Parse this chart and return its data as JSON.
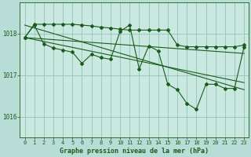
{
  "title": "Graphe pression niveau de la mer (hPa)",
  "bg_color": "#b8ddd6",
  "plot_bg_color": "#c8e8e0",
  "grid_color": "#88bbb4",
  "line_color": "#1a5c1a",
  "tick_color": "#1a5c1a",
  "x_ticks": [
    0,
    1,
    2,
    3,
    4,
    5,
    6,
    7,
    8,
    9,
    10,
    11,
    12,
    13,
    14,
    15,
    16,
    17,
    18,
    19,
    20,
    21,
    22,
    23
  ],
  "ylim": [
    1015.5,
    1018.75
  ],
  "yticks": [
    1016,
    1017,
    1018
  ],
  "series_main": [
    1017.9,
    1018.2,
    1017.75,
    1017.65,
    1017.6,
    1017.55,
    1017.28,
    1017.5,
    1017.42,
    1017.38,
    1018.05,
    1018.2,
    1017.15,
    1017.7,
    1017.58,
    1016.78,
    1016.65,
    1016.32,
    1016.18,
    1016.78,
    1016.78,
    1016.68,
    1016.68,
    1017.68
  ],
  "series_flat": [
    1017.9,
    1018.22,
    1018.22,
    1018.22,
    1018.22,
    1018.22,
    1018.2,
    1018.18,
    1018.15,
    1018.13,
    1018.1,
    1018.08,
    1018.08,
    1018.08,
    1018.08,
    1018.08,
    1017.72,
    1017.68,
    1017.68,
    1017.68,
    1017.68,
    1017.68,
    1017.68,
    1017.72
  ],
  "trend1_x": [
    0,
    23
  ],
  "trend1_y": [
    1017.9,
    1017.52
  ],
  "trend2_x": [
    0,
    23
  ],
  "trend2_y": [
    1018.2,
    1016.65
  ],
  "trend3_x": [
    0,
    23
  ],
  "trend3_y": [
    1017.9,
    1016.82
  ]
}
